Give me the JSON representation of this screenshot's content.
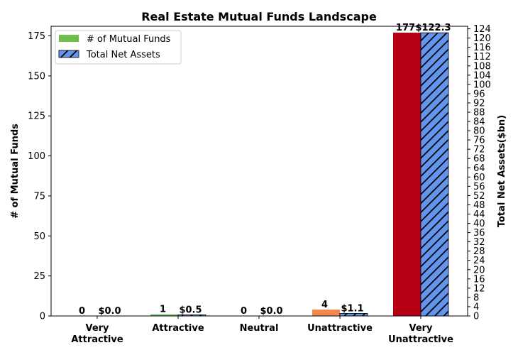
{
  "chart_data": {
    "type": "bar",
    "title": "Real Estate Mutual Funds Landscape",
    "categories": [
      "Very\nAttractive",
      "Attractive",
      "Neutral",
      "Unattractive",
      "Very\nUnattractive"
    ],
    "ylabel": "# of Mutual Funds",
    "y2label": "Total Net Assets($bn)",
    "ylim": [
      0,
      181
    ],
    "y2lim": [
      0,
      125.1
    ],
    "yticks": [
      0,
      25,
      50,
      75,
      100,
      125,
      150,
      175
    ],
    "y2ticks": [
      0,
      4,
      8,
      12,
      16,
      20,
      24,
      28,
      32,
      36,
      40,
      44,
      48,
      52,
      56,
      60,
      64,
      68,
      72,
      76,
      80,
      84,
      88,
      92,
      96,
      100,
      104,
      108,
      112,
      116,
      120,
      124
    ],
    "grid": false,
    "legend_position": "top-left",
    "series": [
      {
        "name": "# of Mutual Funds",
        "axis": "left",
        "values": [
          0,
          1,
          0,
          4,
          177
        ],
        "labels": [
          "0",
          "1",
          "0",
          "4",
          "177"
        ],
        "colors": [
          "#1a9850",
          "#66bd63",
          "#fee08b",
          "#f4874b",
          "#b50013"
        ],
        "legend_color": "#6cc04a"
      },
      {
        "name": "Total Net Assets",
        "axis": "right",
        "values": [
          0.0,
          0.5,
          0.0,
          1.1,
          122.3
        ],
        "labels": [
          "$0.0",
          "$0.5",
          "$0.0",
          "$1.1",
          "$122.3"
        ],
        "color": "#6495ed",
        "hatch": true
      }
    ]
  }
}
